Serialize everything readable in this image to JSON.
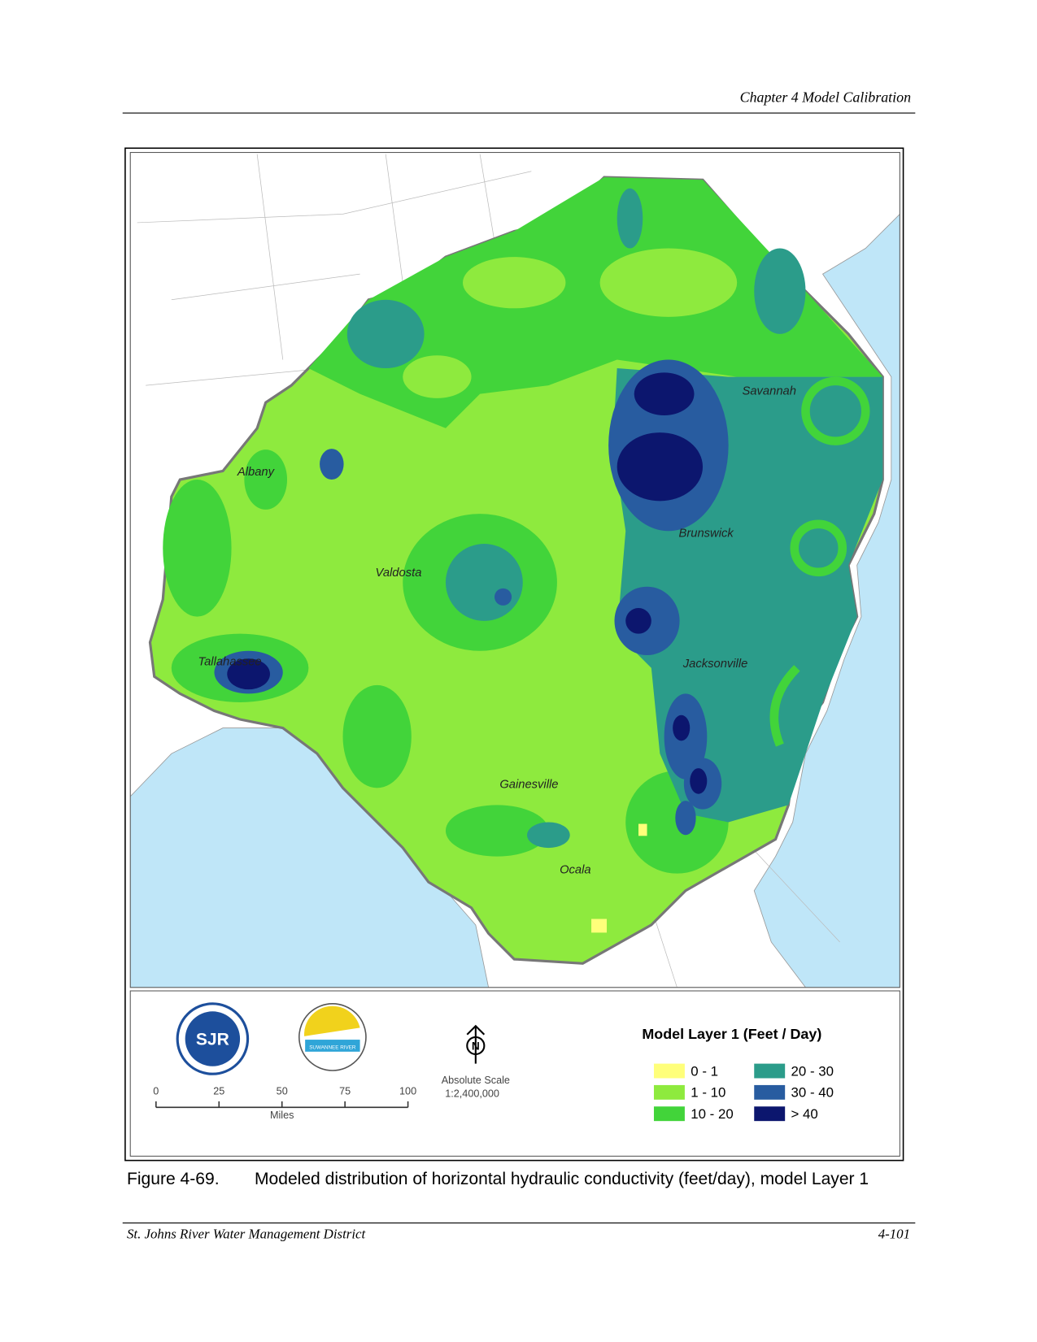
{
  "header": {
    "title": "Chapter 4 Model Calibration"
  },
  "map": {
    "cities": [
      "Savannah",
      "Albany",
      "Brunswick",
      "Valdosta",
      "Tallahassee",
      "Jacksonville",
      "Gainesville",
      "Ocala"
    ],
    "legend": {
      "title": "Model Layer 1  (Feet / Day)",
      "items": [
        {
          "label": "0 - 1",
          "color": "#ffff7a"
        },
        {
          "label": "1 - 10",
          "color": "#8eea3e"
        },
        {
          "label": "10 - 20",
          "color": "#42d43a"
        },
        {
          "label": "20 - 30",
          "color": "#2b9c8a"
        },
        {
          "label": "30 - 40",
          "color": "#285ca0"
        },
        {
          "label": "> 40",
          "color": "#0c166e"
        }
      ]
    },
    "scale": {
      "ticks": [
        "0",
        "25",
        "50",
        "75",
        "100"
      ],
      "unit": "Miles",
      "title": "Absolute Scale",
      "ratio": "1:2,400,000"
    },
    "north": "N",
    "logos": [
      "SJR",
      "SUWANNEE RIVER"
    ]
  },
  "figure": {
    "label": "Figure 4-69.",
    "caption": "Modeled distribution of horizontal hydraulic conductivity (feet/day), model Layer 1"
  },
  "footer": {
    "left": "St. Johns River Water Management District",
    "right": "4-101"
  }
}
